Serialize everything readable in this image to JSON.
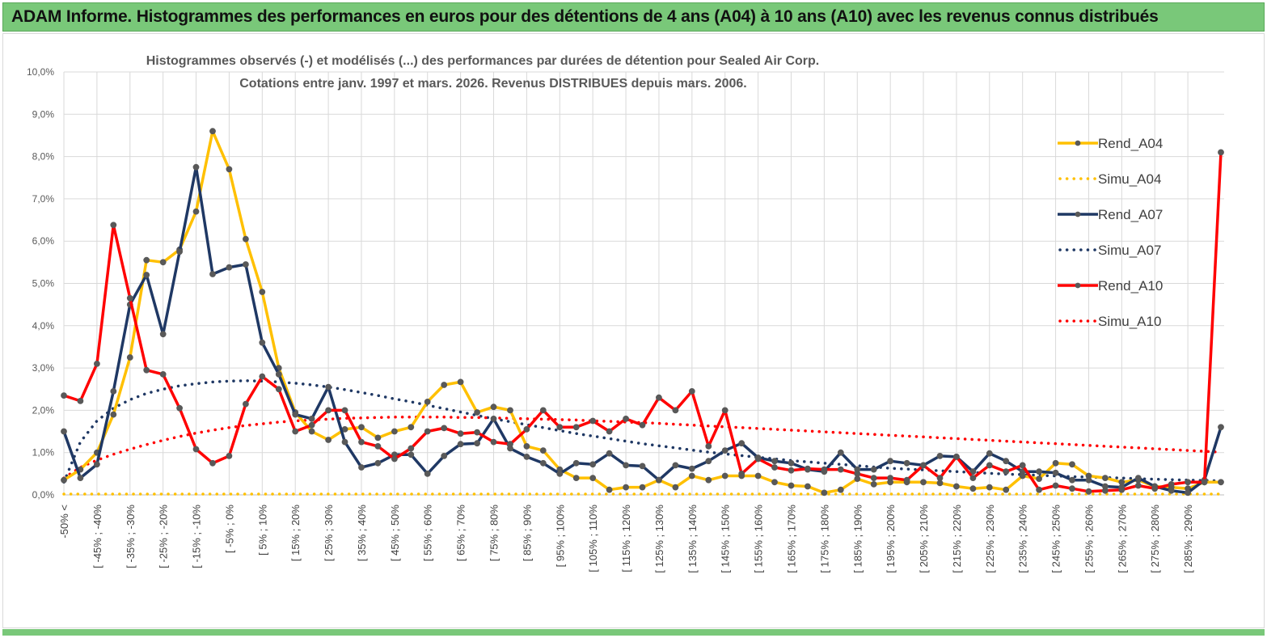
{
  "banner": {
    "title": "ADAM Informe. Histogrammes des performances en euros pour des détentions de 4 ans (A04) à 10 ans (A10) avec les revenus connus distribués"
  },
  "colors": {
    "banner_bg": "#79c879",
    "a04": "#ffc000",
    "a07": "#1f3864",
    "a10": "#ff0000",
    "marker_fill": "#595959"
  },
  "chart_data": {
    "type": "line",
    "title_lines": [
      "Histogrammes observés (-) et modélisés (...) des performances par durées de détention pour Sealed Air Corp.",
      "Cotations entre janv. 1997 et mars. 2026. Revenus DISTRIBUES depuis mars. 2006."
    ],
    "ylim": [
      0,
      10
    ],
    "yticks": [
      "0,0%",
      "1,0%",
      "2,0%",
      "3,0%",
      "4,0%",
      "5,0%",
      "6,0%",
      "7,0%",
      "8,0%",
      "9,0%",
      "10,0%"
    ],
    "xtick_labels": [
      "-50% <",
      "[ -45% ; -40%",
      "[ -35% ; -30%",
      "[ -25% ; -20%",
      "[ -15% ; -10%",
      "[ -5% ; 0%",
      "[ 5% ; 10%",
      "[ 15% ; 20%",
      "[ 25% ; 30%",
      "[ 35% ; 40%",
      "[ 45% ; 50%",
      "[ 55% ; 60%",
      "[ 65% ; 70%",
      "[ 75% ; 80%",
      "[ 85% ; 90%",
      "[ 95% ; 100%",
      "[ 105% ; 110%",
      "[ 115% ; 120%",
      "[ 125% ; 130%",
      "[ 135% ; 140%",
      "[ 145% ; 150%",
      "[ 155% ; 160%",
      "[ 165% ; 170%",
      "[ 175% ; 180%",
      "[ 185% ; 190%",
      "[ 195% ; 200%",
      "[ 205% ; 210%",
      "[ 215% ; 220%",
      "[ 225% ; 230%",
      "[ 235% ; 240%",
      "[ 245% ; 250%",
      "[ 255% ; 260%",
      "[ 265% ; 270%",
      "[ 275% ; 280%",
      "[ 285% ; 290%"
    ],
    "n_categories": 71,
    "series": [
      {
        "name": "Rend_A04",
        "style": "solid",
        "values": [
          0.35,
          0.6,
          1.0,
          1.9,
          3.25,
          5.55,
          5.5,
          5.8,
          6.7,
          8.6,
          7.7,
          6.05,
          4.8,
          3.0,
          1.95,
          1.5,
          1.3,
          1.55,
          1.6,
          1.35,
          1.5,
          1.6,
          2.2,
          2.6,
          2.67,
          1.95,
          2.08,
          2.0,
          1.15,
          1.05,
          0.6,
          0.4,
          0.4,
          0.12,
          0.18,
          0.18,
          0.35,
          0.18,
          0.45,
          0.35,
          0.45,
          0.45,
          0.45,
          0.3,
          0.22,
          0.2,
          0.05,
          0.12,
          0.38,
          0.25,
          0.3,
          0.3,
          0.3,
          0.28,
          0.2,
          0.15,
          0.18,
          0.12,
          0.45,
          0.38,
          0.75,
          0.72,
          0.45,
          0.4,
          0.3,
          0.35,
          0.2,
          0.18,
          0.15,
          0.3,
          0.3
        ]
      },
      {
        "name": "Simu_A04",
        "style": "dotted",
        "values": [
          0.02,
          0.02,
          0.02,
          0.02,
          0.02,
          0.02,
          0.02,
          0.02,
          0.02,
          0.02,
          0.02,
          0.02,
          0.02,
          0.02,
          0.02,
          0.02,
          0.02,
          0.02,
          0.02,
          0.02,
          0.02,
          0.02,
          0.02,
          0.02,
          0.02,
          0.02,
          0.02,
          0.02,
          0.02,
          0.02,
          0.02,
          0.02,
          0.02,
          0.02,
          0.02,
          0.02,
          0.02,
          0.02,
          0.02,
          0.02,
          0.02,
          0.02,
          0.02,
          0.02,
          0.02,
          0.02,
          0.02,
          0.02,
          0.02,
          0.02,
          0.02,
          0.02,
          0.02,
          0.02,
          0.02,
          0.02,
          0.02,
          0.02,
          0.02,
          0.02,
          0.02,
          0.02,
          0.02,
          0.02,
          0.02,
          0.02,
          0.02,
          0.02,
          0.02,
          0.02,
          0.02
        ]
      },
      {
        "name": "Rend_A07",
        "style": "solid",
        "values": [
          1.5,
          0.4,
          0.72,
          2.45,
          4.5,
          5.2,
          3.8,
          5.75,
          7.75,
          5.22,
          5.38,
          5.45,
          3.6,
          2.85,
          1.9,
          1.8,
          2.55,
          1.25,
          0.65,
          0.75,
          0.95,
          0.95,
          0.5,
          0.92,
          1.2,
          1.22,
          1.8,
          1.1,
          0.9,
          0.75,
          0.5,
          0.75,
          0.72,
          0.98,
          0.7,
          0.68,
          0.35,
          0.7,
          0.62,
          0.8,
          1.05,
          1.22,
          0.88,
          0.8,
          0.75,
          0.6,
          0.55,
          1.0,
          0.6,
          0.6,
          0.8,
          0.75,
          0.7,
          0.92,
          0.9,
          0.55,
          0.98,
          0.8,
          0.55,
          0.55,
          0.52,
          0.35,
          0.35,
          0.2,
          0.18,
          0.4,
          0.2,
          0.1,
          0.05,
          0.35,
          1.6
        ]
      },
      {
        "name": "Simu_A07",
        "style": "dotted",
        "values": [
          0.3,
          1.25,
          1.75,
          2.05,
          2.25,
          2.4,
          2.5,
          2.58,
          2.63,
          2.67,
          2.69,
          2.7,
          2.69,
          2.67,
          2.64,
          2.6,
          2.55,
          2.49,
          2.42,
          2.35,
          2.27,
          2.2,
          2.12,
          2.04,
          1.96,
          1.88,
          1.8,
          1.73,
          1.66,
          1.59,
          1.52,
          1.45,
          1.39,
          1.33,
          1.27,
          1.21,
          1.16,
          1.11,
          1.06,
          1.01,
          0.97,
          0.93,
          0.89,
          0.85,
          0.81,
          0.78,
          0.75,
          0.72,
          0.69,
          0.66,
          0.63,
          0.61,
          0.59,
          0.57,
          0.55,
          0.53,
          0.51,
          0.49,
          0.48,
          0.46,
          0.45,
          0.43,
          0.42,
          0.41,
          0.4,
          0.38,
          0.37,
          0.36,
          0.35,
          0.34,
          0.33
        ]
      },
      {
        "name": "Rend_A10",
        "style": "solid",
        "values": [
          2.35,
          2.22,
          3.1,
          6.38,
          4.65,
          2.95,
          2.85,
          2.05,
          1.08,
          0.75,
          0.92,
          2.15,
          2.8,
          2.5,
          1.5,
          1.65,
          2.0,
          2.0,
          1.25,
          1.15,
          0.85,
          1.1,
          1.5,
          1.58,
          1.45,
          1.48,
          1.25,
          1.2,
          1.55,
          2.0,
          1.6,
          1.6,
          1.75,
          1.5,
          1.8,
          1.65,
          2.3,
          2.0,
          2.45,
          1.15,
          2.0,
          0.5,
          0.85,
          0.65,
          0.58,
          0.62,
          0.6,
          0.6,
          0.5,
          0.4,
          0.4,
          0.35,
          0.7,
          0.4,
          0.9,
          0.4,
          0.7,
          0.55,
          0.7,
          0.12,
          0.22,
          0.15,
          0.08,
          0.1,
          0.12,
          0.22,
          0.15,
          0.25,
          0.3,
          0.3,
          8.1
        ]
      },
      {
        "name": "Simu_A10",
        "style": "dotted",
        "values": [
          0.4,
          0.65,
          0.82,
          0.96,
          1.08,
          1.19,
          1.29,
          1.38,
          1.46,
          1.53,
          1.59,
          1.64,
          1.68,
          1.72,
          1.75,
          1.77,
          1.79,
          1.81,
          1.82,
          1.83,
          1.84,
          1.84,
          1.84,
          1.84,
          1.83,
          1.83,
          1.82,
          1.81,
          1.8,
          1.79,
          1.78,
          1.77,
          1.75,
          1.74,
          1.72,
          1.71,
          1.69,
          1.67,
          1.65,
          1.63,
          1.61,
          1.59,
          1.57,
          1.55,
          1.53,
          1.51,
          1.49,
          1.47,
          1.45,
          1.43,
          1.41,
          1.39,
          1.37,
          1.35,
          1.33,
          1.31,
          1.29,
          1.27,
          1.25,
          1.23,
          1.21,
          1.19,
          1.17,
          1.15,
          1.13,
          1.11,
          1.09,
          1.07,
          1.05,
          1.03,
          1.01
        ]
      }
    ],
    "legend": [
      "Rend_A04",
      "Simu_A04",
      "Rend_A07",
      "Simu_A07",
      "Rend_A10",
      "Simu_A10"
    ],
    "legend_position": "right"
  }
}
